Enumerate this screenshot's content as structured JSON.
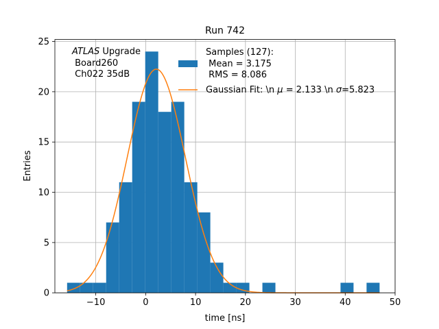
{
  "chart_data": {
    "type": "bar",
    "title": "Run 742",
    "xlabel": "time [ns]",
    "ylabel": "Entries",
    "xlim": [
      -18.2,
      50.0
    ],
    "ylim": [
      0,
      25.2
    ],
    "xticks": [
      -10,
      0,
      10,
      20,
      30,
      40,
      50
    ],
    "yticks": [
      0,
      5,
      10,
      15,
      20,
      25
    ],
    "grid": true,
    "bin_edges": [
      -15.75,
      -13.14,
      -10.53,
      -7.92,
      -5.31,
      -2.7,
      -0.09,
      2.52,
      5.13,
      7.74,
      10.35,
      12.96,
      15.57,
      18.18,
      20.79,
      23.4,
      26.01,
      28.62,
      31.23,
      33.84,
      36.45,
      39.06,
      41.67,
      44.28,
      46.89
    ],
    "series": [
      {
        "name": "Samples (127):\n Mean = 3.175\n RMS = 8.086",
        "color": "#1f77b4",
        "values": [
          1,
          1,
          1,
          7,
          11,
          19,
          24,
          18,
          19,
          11,
          8,
          3,
          1,
          1,
          0,
          1,
          0,
          0,
          0,
          0,
          0,
          1,
          0,
          1
        ]
      },
      {
        "name": "Gaussian Fit: \\n $\\mu$ = 2.133 \\n $\\sigma$=5.823",
        "color": "#ff7f0e",
        "fit": {
          "amplitude": 22.25,
          "mu": 2.133,
          "sigma": 5.823,
          "x_range": [
            -15.75,
            46.89
          ]
        }
      }
    ],
    "legend": {
      "location": "top-right",
      "entries": [
        {
          "lines": [
            "Samples (127):",
            " Mean = 3.175",
            " RMS = 8.086"
          ]
        },
        {
          "text": "Gaussian Fit: \\n ",
          "mu_symbol": "μ",
          "mu_text": " = 2.133 \\n ",
          "sigma_symbol": "σ",
          "sigma_text": "=5.823"
        }
      ]
    },
    "annotation": {
      "atlas": "ATLAS",
      "upgrade": " Upgrade",
      "lines": [
        " Board260",
        " Ch022 35dB"
      ]
    }
  }
}
